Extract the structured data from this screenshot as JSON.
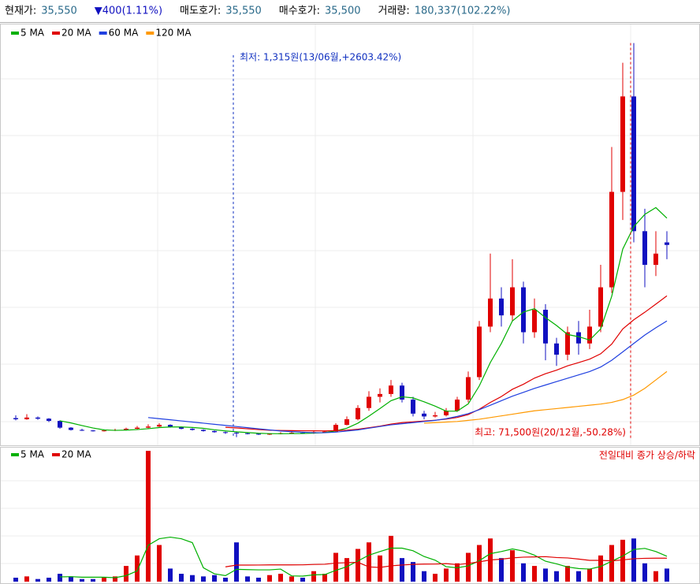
{
  "header": {
    "items": [
      {
        "label": "현재가:",
        "value": "35,550"
      },
      {
        "value": "▼400(1.11%)"
      },
      {
        "label": "매도호가:",
        "value": "35,550"
      },
      {
        "label": "매수호가:",
        "value": "35,500"
      },
      {
        "label": "거래량:",
        "value": "180,337(102.22%)"
      }
    ]
  },
  "chart_data": [
    {
      "type": "candlestick",
      "up_color": "#e00000",
      "down_color": "#1010c0",
      "ylim": [
        0,
        73000
      ],
      "open": [
        4700,
        4500,
        4800,
        4600,
        4200,
        3000,
        2600,
        2500,
        2400,
        2500,
        2600,
        2800,
        3000,
        3200,
        3500,
        3100,
        2800,
        2600,
        2400,
        2200,
        2100,
        2000,
        1900,
        1800,
        1900,
        2000,
        2100,
        2000,
        2200,
        2300,
        3500,
        4500,
        6500,
        8500,
        9000,
        10500,
        8000,
        5500,
        5000,
        5200,
        6000,
        8000,
        12000,
        21000,
        26000,
        23000,
        28000,
        20000,
        24000,
        18000,
        16000,
        20000,
        18000,
        21000,
        28000,
        45000,
        62000,
        38000,
        32000,
        36000
      ],
      "high": [
        5200,
        5400,
        5000,
        4700,
        4300,
        3100,
        2800,
        2600,
        2700,
        2800,
        3000,
        3300,
        3600,
        3800,
        3600,
        3200,
        2900,
        2700,
        2500,
        2300,
        2200,
        2100,
        2000,
        2000,
        2200,
        2300,
        2200,
        2400,
        2500,
        3800,
        5000,
        7000,
        9500,
        10000,
        11500,
        11000,
        8500,
        6000,
        5800,
        6500,
        8500,
        13000,
        22000,
        34000,
        28000,
        33000,
        29000,
        26000,
        25000,
        19000,
        21000,
        22000,
        24000,
        32000,
        53000,
        68000,
        71500,
        42000,
        38000,
        38000
      ],
      "low": [
        4300,
        4400,
        4400,
        4000,
        2800,
        2500,
        2400,
        2300,
        2300,
        2400,
        2500,
        2700,
        2900,
        3100,
        3000,
        2700,
        2500,
        2300,
        2100,
        1900,
        1315,
        1800,
        1700,
        1700,
        1800,
        1900,
        1900,
        1900,
        2100,
        2200,
        3400,
        4300,
        6000,
        7500,
        8500,
        7500,
        5000,
        4500,
        4800,
        5000,
        5800,
        7500,
        11500,
        20000,
        21000,
        22000,
        18000,
        19000,
        15000,
        14000,
        15000,
        16000,
        17000,
        20000,
        27000,
        40000,
        36000,
        28000,
        30000,
        33000
      ],
      "close": [
        4500,
        4800,
        4600,
        4200,
        3000,
        2600,
        2500,
        2400,
        2500,
        2600,
        2800,
        3000,
        3200,
        3500,
        3100,
        2800,
        2600,
        2400,
        2200,
        2100,
        2000,
        1900,
        1800,
        1900,
        2000,
        2100,
        2000,
        2200,
        2300,
        3500,
        4500,
        6500,
        8500,
        9000,
        10500,
        8000,
        5500,
        5000,
        5200,
        6000,
        8000,
        12000,
        21000,
        26000,
        23000,
        28000,
        20000,
        24000,
        18000,
        16000,
        20000,
        18000,
        21000,
        28000,
        45000,
        62000,
        38000,
        32000,
        34000,
        35550
      ],
      "series": [
        {
          "name": "5 MA",
          "color": "#00b000",
          "values": [
            null,
            null,
            null,
            null,
            4220,
            3840,
            3380,
            2940,
            2600,
            2520,
            2560,
            2660,
            2820,
            3020,
            3120,
            3120,
            3040,
            2880,
            2620,
            2420,
            2260,
            2120,
            2000,
            1940,
            1920,
            1940,
            1960,
            2040,
            2120,
            2420,
            2900,
            3800,
            5060,
            6400,
            7800,
            8500,
            8300,
            7600,
            6840,
            5940,
            5940,
            7240,
            10440,
            14600,
            18000,
            22000,
            23600,
            24200,
            22600,
            21200,
            19600,
            19200,
            18600,
            20600,
            26400,
            34800,
            38800,
            41000,
            42200,
            40310
          ]
        },
        {
          "name": "20 MA",
          "color": "#e00000",
          "values": [
            null,
            null,
            null,
            null,
            null,
            null,
            null,
            null,
            null,
            null,
            null,
            null,
            null,
            null,
            null,
            null,
            null,
            null,
            null,
            3070,
            2945,
            2800,
            2660,
            2545,
            2495,
            2470,
            2445,
            2435,
            2425,
            2470,
            2555,
            2730,
            2995,
            3270,
            3640,
            3900,
            4045,
            4175,
            4325,
            4520,
            4820,
            5325,
            6285,
            7490,
            8540,
            9835,
            10735,
            11825,
            12610,
            13235,
            14010,
            14585,
            15210,
            16160,
            17885,
            20585,
            22210,
            23560,
            25000,
            26478
          ]
        },
        {
          "name": "60 MA",
          "color": "#2040e0",
          "values": [
            null,
            null,
            null,
            null,
            null,
            null,
            null,
            null,
            null,
            null,
            null,
            null,
            4800,
            4600,
            4400,
            4200,
            4000,
            3800,
            3600,
            3400,
            3200,
            3000,
            2800,
            2600,
            2400,
            2300,
            2200,
            2100,
            2100,
            2200,
            2400,
            2600,
            2900,
            3200,
            3500,
            3700,
            3900,
            4100,
            4300,
            4600,
            5000,
            5500,
            6200,
            7000,
            7800,
            8600,
            9300,
            10000,
            10600,
            11200,
            11800,
            12400,
            13000,
            13800,
            15000,
            16500,
            18000,
            19500,
            20800,
            22000
          ]
        },
        {
          "name": "120 MA",
          "color": "#ff9900",
          "values": [
            null,
            null,
            null,
            null,
            null,
            null,
            null,
            null,
            null,
            null,
            null,
            null,
            null,
            null,
            null,
            null,
            null,
            null,
            null,
            null,
            null,
            null,
            null,
            null,
            null,
            null,
            null,
            null,
            null,
            null,
            null,
            null,
            null,
            null,
            null,
            null,
            null,
            3800,
            3900,
            4000,
            4100,
            4300,
            4500,
            4800,
            5100,
            5400,
            5700,
            6000,
            6200,
            6400,
            6600,
            6800,
            7000,
            7200,
            7500,
            8000,
            8800,
            10000,
            11500,
            13000
          ]
        }
      ],
      "annotations": [
        {
          "text": "최저: 1,315원(13/06월,+2603.42%)",
          "value": 1315,
          "color": "#1030c0"
        },
        {
          "text": "최고: 71,500원(20/12월,-50.28%)",
          "value": 71500,
          "color": "#e00000"
        }
      ]
    },
    {
      "type": "bar",
      "ylim": [
        0,
        100
      ],
      "note": "전일대비 종가 상승/하락",
      "note_color": "#e00000",
      "values": [
        3,
        4,
        2,
        3,
        6,
        4,
        2,
        2,
        3,
        4,
        12,
        20,
        100,
        28,
        10,
        6,
        5,
        4,
        5,
        3,
        30,
        4,
        3,
        5,
        6,
        4,
        3,
        8,
        6,
        22,
        18,
        25,
        30,
        20,
        35,
        18,
        15,
        8,
        6,
        10,
        14,
        22,
        28,
        33,
        18,
        24,
        14,
        12,
        10,
        8,
        12,
        8,
        10,
        20,
        28,
        32,
        33,
        14,
        8,
        10
      ],
      "series": [
        {
          "name": "5 MA",
          "color": "#00b000",
          "values": [
            null,
            null,
            null,
            null,
            3.6,
            3.8,
            3.4,
            3.4,
            3.4,
            3,
            4.6,
            8.2,
            27.8,
            32.8,
            34,
            32.8,
            29.8,
            10.6,
            6,
            4.6,
            9.4,
            9.2,
            9,
            9,
            9.6,
            4.4,
            4.2,
            5.2,
            5.4,
            8.6,
            11.4,
            15.8,
            20.2,
            23,
            25.6,
            25.6,
            23.6,
            19.2,
            16.4,
            11.4,
            10.6,
            12,
            16,
            21.4,
            23,
            25,
            23.4,
            20.2,
            15.6,
            13.6,
            11.2,
            10,
            9.6,
            11.6,
            15.6,
            19.6,
            24.6,
            25.4,
            23,
            19.4
          ]
        },
        {
          "name": "20 MA",
          "color": "#e00000",
          "values": [
            null,
            null,
            null,
            null,
            null,
            null,
            null,
            null,
            null,
            null,
            null,
            null,
            null,
            null,
            null,
            null,
            null,
            null,
            null,
            11.3,
            12.65,
            12.65,
            12.7,
            12.8,
            12.8,
            12.8,
            12.85,
            13.15,
            13.3,
            14.2,
            14.5,
            14.75,
            11.25,
            10.85,
            12.1,
            12.7,
            13.2,
            13.4,
            13.45,
            13.8,
            13,
            13.9,
            15.15,
            16.55,
            17.15,
            18.15,
            18.7,
            18.9,
            19.1,
            18.4,
            18.1,
            17.25,
            16.25,
            16.25,
            15.9,
            16.6,
            17.5,
            17.8,
            17.9,
            17.9
          ]
        }
      ]
    }
  ]
}
